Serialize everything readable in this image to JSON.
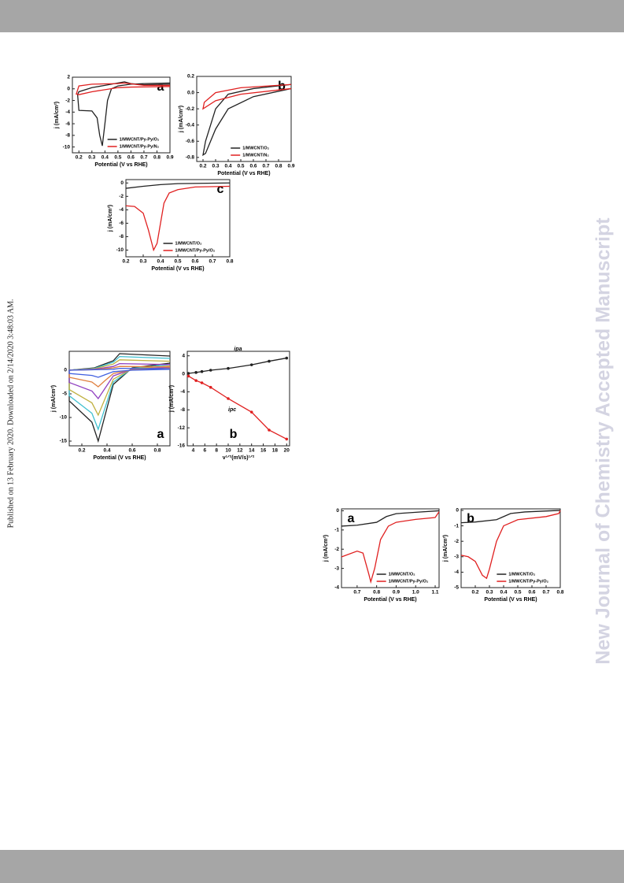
{
  "side_note": "Published on 13 February 2020. Downloaded on 2/14/2020 3:48:03 AM.",
  "watermark": "New Journal of Chemistry Accepted Manuscript",
  "chart_data": [
    {
      "type": "line",
      "panel_label": "a",
      "label_corner": "upper right",
      "legend": "lower right",
      "xlabel": "Potential (V vs RHE)",
      "ylabel": "j (mA/cm²)",
      "xlim": [
        0.15,
        0.9
      ],
      "ylim": [
        -11,
        2
      ],
      "xticks": [
        0.2,
        0.3,
        0.4,
        0.5,
        0.6,
        0.7,
        0.8,
        0.9
      ],
      "yticks": [
        -10,
        -8,
        -6,
        -4,
        -2,
        0,
        2
      ],
      "series": [
        {
          "name": "1/MWCNT/Py-Py/O₂",
          "color": "#222222",
          "x": [
            0.9,
            0.7,
            0.6,
            0.5,
            0.45,
            0.42,
            0.4,
            0.38,
            0.36,
            0.34,
            0.3,
            0.2,
            0.19,
            0.2,
            0.3,
            0.4,
            0.5,
            0.55,
            0.6,
            0.7,
            0.9
          ],
          "values": [
            1.0,
            0.9,
            0.8,
            0.5,
            0,
            -2,
            -6,
            -9.8,
            -8,
            -5,
            -3.8,
            -3.7,
            -1,
            -0.5,
            0.2,
            0.6,
            1.0,
            1.2,
            0.9,
            0.7,
            0.8
          ]
        },
        {
          "name": "1/MWCNT/Py-Py/N₂",
          "color": "#e02020",
          "x": [
            0.9,
            0.6,
            0.5,
            0.3,
            0.2,
            0.18,
            0.2,
            0.3,
            0.5,
            0.55,
            0.7,
            0.9
          ],
          "values": [
            0.4,
            0.3,
            0.2,
            -0.5,
            -1.0,
            -0.9,
            0.5,
            0.8,
            0.9,
            1.0,
            0.6,
            0.6
          ]
        }
      ]
    },
    {
      "type": "line",
      "panel_label": "b",
      "label_corner": "upper right",
      "legend": "lower right",
      "xlabel": "Potential (V vs RHE)",
      "ylabel": "j (mA/cm²)",
      "xlim": [
        0.15,
        0.9
      ],
      "ylim": [
        -0.85,
        0.2
      ],
      "xticks": [
        0.2,
        0.3,
        0.4,
        0.5,
        0.6,
        0.7,
        0.8,
        0.9
      ],
      "yticks": [
        -0.8,
        -0.6,
        -0.4,
        -0.2,
        {
          "value": 0,
          "label": "0.0"
        },
        0.2
      ],
      "series": [
        {
          "name": "1/MWCNT/O₂",
          "color": "#222222",
          "x": [
            0.9,
            0.6,
            0.4,
            0.3,
            0.22,
            0.2,
            0.22,
            0.3,
            0.4,
            0.6,
            0.9
          ],
          "values": [
            0.05,
            -0.05,
            -0.2,
            -0.45,
            -0.75,
            -0.77,
            -0.6,
            -0.2,
            -0.02,
            0.05,
            0.1
          ]
        },
        {
          "name": "1/MWCNT/N₂",
          "color": "#e02020",
          "x": [
            0.9,
            0.5,
            0.3,
            0.2,
            0.21,
            0.3,
            0.5,
            0.9
          ],
          "values": [
            0.05,
            -0.02,
            -0.1,
            -0.2,
            -0.12,
            0.0,
            0.06,
            0.1
          ]
        }
      ]
    },
    {
      "type": "line",
      "panel_label": "c",
      "label_corner": "upper right",
      "legend": "lower right",
      "xlabel": "Potential (V vs RHE)",
      "ylabel": "j (mA/cm²)",
      "xlim": [
        0.2,
        0.8
      ],
      "ylim": [
        -11,
        0.5
      ],
      "xticks": [
        0.2,
        0.3,
        0.4,
        0.5,
        0.6,
        0.7,
        0.8
      ],
      "yticks": [
        -10,
        -8,
        -6,
        -4,
        -2,
        0
      ],
      "series": [
        {
          "name": "1/MWCNT/O₂",
          "color": "#222222",
          "x": [
            0.2,
            0.3,
            0.4,
            0.5,
            0.8
          ],
          "values": [
            -0.8,
            -0.5,
            -0.25,
            -0.1,
            0
          ]
        },
        {
          "name": "1/MWCNT/Py-Py/O₂",
          "color": "#e02020",
          "x": [
            0.2,
            0.25,
            0.3,
            0.33,
            0.36,
            0.38,
            0.4,
            0.42,
            0.45,
            0.5,
            0.6,
            0.8
          ],
          "values": [
            -3.4,
            -3.5,
            -4.5,
            -7,
            -10,
            -9,
            -6,
            -3,
            -1.5,
            -1,
            -0.6,
            -0.5
          ]
        }
      ]
    },
    {
      "type": "line",
      "panel_label": "a",
      "label_corner": "lower right",
      "xlabel": "Potential (V vs RHE)",
      "ylabel": "j (mA/cm²)",
      "xlim": [
        0.1,
        0.9
      ],
      "ylim": [
        -16,
        4
      ],
      "xticks": [
        0.2,
        0.4,
        0.6,
        0.8
      ],
      "yticks": [
        -15,
        -10,
        -5,
        0
      ],
      "x": [
        0.9,
        0.6,
        0.45,
        0.38,
        0.33,
        0.28,
        0.1,
        0.1,
        0.3,
        0.45,
        0.5,
        0.9
      ],
      "series": [
        {
          "color": "#222222",
          "values": [
            1.5,
            0.5,
            -3,
            -10,
            -15,
            -11,
            -6.5,
            0,
            0.5,
            2,
            3.5,
            3
          ]
        },
        {
          "color": "#40c0d0",
          "values": [
            1.2,
            0.4,
            -2.5,
            -8.3,
            -12.5,
            -9.1,
            -5.4,
            0,
            0.4,
            1.7,
            2.9,
            2.5
          ]
        },
        {
          "color": "#c0b040",
          "values": [
            0.9,
            0.3,
            -1.9,
            -6.3,
            -9.5,
            -6.9,
            -4.1,
            0,
            0.3,
            1.3,
            2.2,
            1.9
          ]
        },
        {
          "color": "#9040c0",
          "values": [
            0.6,
            0.2,
            -1.2,
            -4,
            -6,
            -4.4,
            -2.6,
            0,
            0.2,
            0.8,
            1.4,
            1.2
          ]
        },
        {
          "color": "#e08040",
          "values": [
            0.4,
            0.1,
            -0.7,
            -2.3,
            -3.5,
            -2.5,
            -1.5,
            0,
            0.1,
            0.5,
            0.8,
            0.7
          ]
        },
        {
          "color": "#4060e0",
          "values": [
            0.2,
            0,
            -0.3,
            -1,
            -1.5,
            -1.1,
            -0.7,
            0,
            0.1,
            0.2,
            0.4,
            0.3
          ]
        }
      ]
    },
    {
      "type": "line",
      "panel_label": "b",
      "label_corner": "lower center",
      "markers": true,
      "xlabel": "v¹ᐟ²(mV/s)¹ᐟ²",
      "ylabel": "j (mA/cm²)",
      "annotations": [
        "ipa",
        "ipc"
      ],
      "xlim": [
        3,
        20.5
      ],
      "ylim": [
        -16,
        5
      ],
      "xticks": [
        4,
        6,
        8,
        10,
        12,
        14,
        16,
        18,
        20
      ],
      "yticks": [
        4,
        0,
        -4,
        -8,
        -12,
        -16
      ],
      "x": [
        3.2,
        4.5,
        5.5,
        7,
        10,
        14,
        17,
        20
      ],
      "series": [
        {
          "color": "#222222",
          "values": [
            0.1,
            0.3,
            0.5,
            0.8,
            1.2,
            2,
            2.8,
            3.5
          ]
        },
        {
          "color": "#e02020",
          "values": [
            -0.5,
            -1.5,
            -2,
            -3,
            -5.5,
            -8.5,
            -12.5,
            -14.5
          ]
        }
      ]
    },
    {
      "type": "line",
      "panel_label": "a",
      "label_corner": "upper left",
      "legend": "lower right",
      "xlabel": "Potential (V vs RHE)",
      "ylabel": "j (mA/cm²)",
      "xlim": [
        0.62,
        1.12
      ],
      "ylim": [
        -4,
        0.1
      ],
      "xticks": [
        0.7,
        0.8,
        0.9,
        {
          "value": 1,
          "label": "1.0"
        },
        1.1
      ],
      "yticks": [
        0,
        -1,
        -2,
        -3,
        -4
      ],
      "series": [
        {
          "name": "1/MWCNT/O₂",
          "color": "#222222",
          "x": [
            0.62,
            0.7,
            0.8,
            0.85,
            0.9,
            1.0,
            1.12
          ],
          "values": [
            -0.8,
            -0.75,
            -0.6,
            -0.3,
            -0.15,
            -0.08,
            0
          ]
        },
        {
          "name": "1/MWCNT/Py-Py/O₂",
          "color": "#e02020",
          "x": [
            0.62,
            0.7,
            0.73,
            0.76,
            0.77,
            0.79,
            0.82,
            0.86,
            0.9,
            1.0,
            1.1,
            1.12
          ],
          "values": [
            -2.4,
            -2.1,
            -2.2,
            -3.3,
            -3.7,
            -3,
            -1.5,
            -0.8,
            -0.6,
            -0.45,
            -0.35,
            -0.05
          ]
        }
      ]
    },
    {
      "type": "line",
      "panel_label": "b",
      "label_corner": "upper left",
      "legend": "lower right",
      "xlabel": "Potential (V vs RHE)",
      "ylabel": "j (mA/cm²)",
      "xlim": [
        0.1,
        0.8
      ],
      "ylim": [
        -5,
        0.1
      ],
      "xticks": [
        0.2,
        0.3,
        0.4,
        0.5,
        0.6,
        0.7,
        0.8
      ],
      "yticks": [
        0,
        -1,
        -2,
        -3,
        -4,
        -5
      ],
      "series": [
        {
          "name": "1/MWCNT/O₂",
          "color": "#222222",
          "x": [
            0.1,
            0.2,
            0.35,
            0.45,
            0.55,
            0.8
          ],
          "values": [
            -0.8,
            -0.75,
            -0.6,
            -0.2,
            -0.1,
            0
          ]
        },
        {
          "name": "1/MWCNT/Py-Py/O₂",
          "color": "#e02020",
          "x": [
            0.1,
            0.15,
            0.2,
            0.25,
            0.28,
            0.3,
            0.35,
            0.4,
            0.5,
            0.7,
            0.79,
            0.8
          ],
          "values": [
            -2.9,
            -3,
            -3.3,
            -4.2,
            -4.4,
            -3.8,
            -2,
            -1,
            -0.6,
            -0.4,
            -0.2,
            0
          ]
        }
      ]
    }
  ]
}
